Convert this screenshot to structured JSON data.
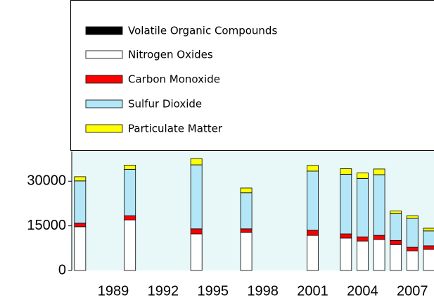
{
  "chart_data": {
    "type": "stacked_bar",
    "x": [
      1987,
      1990,
      1994,
      1997,
      2001,
      2003,
      2004,
      2005,
      2006,
      2007,
      2008
    ],
    "series": [
      {
        "name": "Volatile Organic Compounds",
        "color": "#000000",
        "values": [
          0,
          0,
          0,
          0,
          0,
          0,
          0,
          0,
          0,
          0,
          0
        ]
      },
      {
        "name": "Nitrogen Oxides",
        "color": "#ffffff",
        "values": [
          14700,
          17000,
          12300,
          12800,
          11800,
          10900,
          9900,
          10400,
          8700,
          6600,
          7100
        ]
      },
      {
        "name": "Carbon Monoxide",
        "color": "#ff0000",
        "values": [
          1200,
          1400,
          1700,
          1200,
          1700,
          1400,
          1400,
          1400,
          1400,
          1200,
          1200
        ]
      },
      {
        "name": "Sulfur Dioxide",
        "color": "#b3e6f7",
        "values": [
          14200,
          15600,
          21500,
          12100,
          19900,
          20000,
          19600,
          20400,
          9000,
          9700,
          5000
        ]
      },
      {
        "name": "Particulate Matter",
        "color": "#ffff00",
        "values": [
          1400,
          1400,
          2100,
          1600,
          1900,
          1900,
          1900,
          1900,
          900,
          900,
          900
        ]
      }
    ],
    "xlim": [
      1986.5,
      2008.3
    ],
    "xticks": [
      1989,
      1992,
      1995,
      1998,
      2001,
      2004,
      2007
    ],
    "ylim": [
      0,
      40000
    ],
    "yticks": [
      0,
      15000,
      30000
    ]
  }
}
